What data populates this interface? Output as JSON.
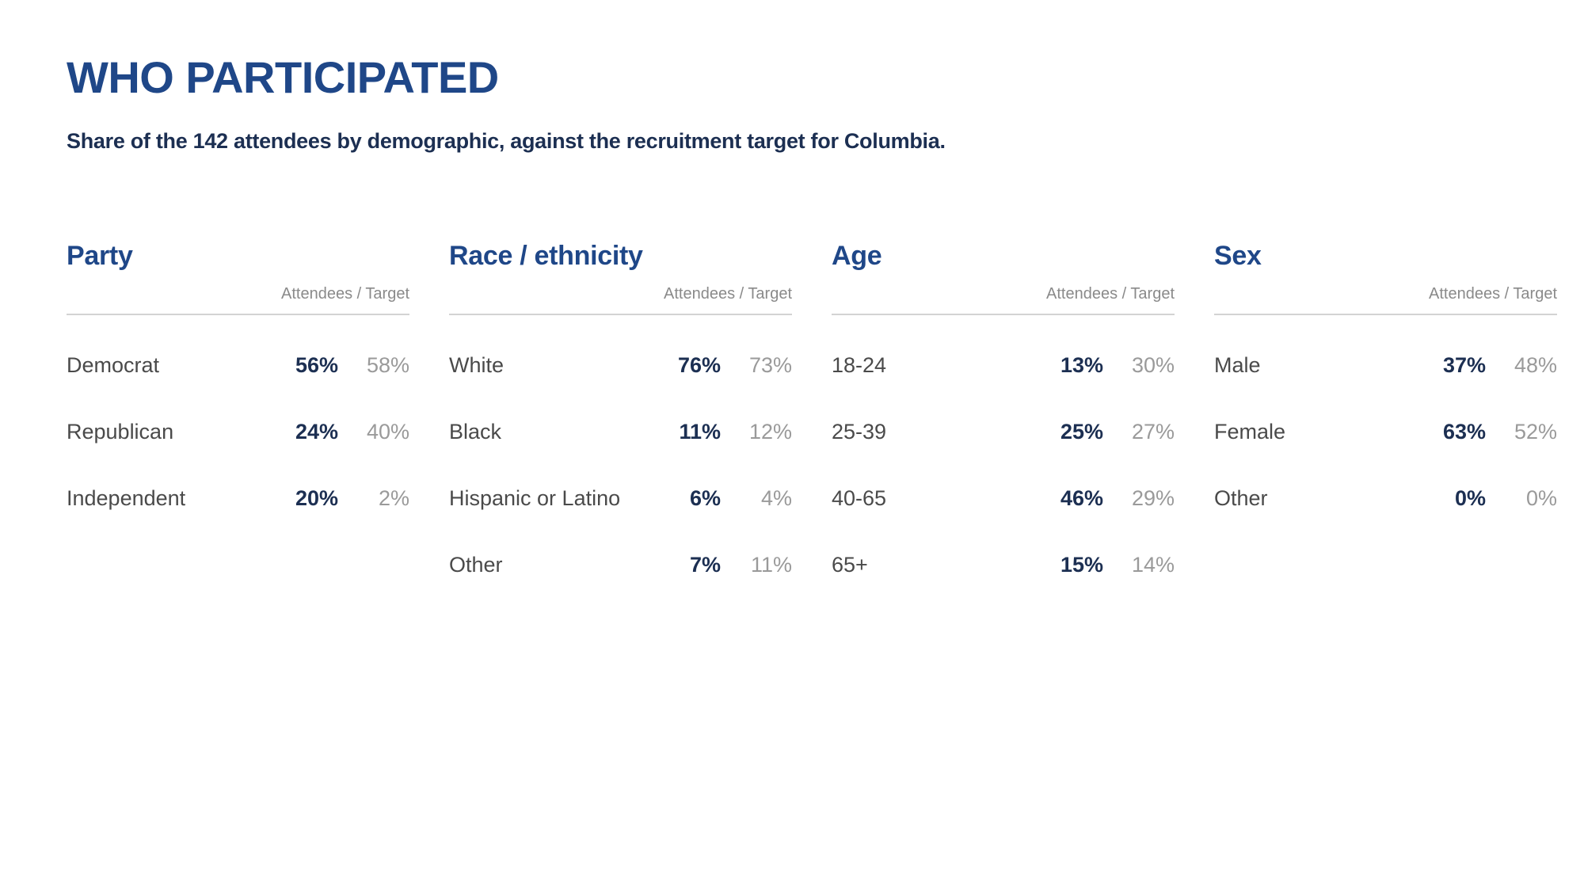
{
  "title": "WHO PARTICIPATED",
  "subtitle": "Share of the 142 attendees by demographic, against the recruitment target for Columbia.",
  "groups": [
    {
      "title": "Party",
      "column_header": "Attendees / Target",
      "rows": [
        {
          "label": "Democrat",
          "attendees": "56%",
          "target": "58%"
        },
        {
          "label": "Republican",
          "attendees": "24%",
          "target": "40%"
        },
        {
          "label": "Independent",
          "attendees": "20%",
          "target": "2%"
        }
      ]
    },
    {
      "title": "Race / ethnicity",
      "column_header": "Attendees / Target",
      "rows": [
        {
          "label": "White",
          "attendees": "76%",
          "target": "73%"
        },
        {
          "label": "Black",
          "attendees": "11%",
          "target": "12%"
        },
        {
          "label": "Hispanic or Latino",
          "attendees": "6%",
          "target": "4%"
        },
        {
          "label": "Other",
          "attendees": "7%",
          "target": "11%"
        }
      ]
    },
    {
      "title": "Age",
      "column_header": "Attendees / Target",
      "rows": [
        {
          "label": "18-24",
          "attendees": "13%",
          "target": "30%"
        },
        {
          "label": "25-39",
          "attendees": "25%",
          "target": "27%"
        },
        {
          "label": "40-65",
          "attendees": "46%",
          "target": "29%"
        },
        {
          "label": "65+",
          "attendees": "15%",
          "target": "14%"
        }
      ]
    },
    {
      "title": "Sex",
      "column_header": "Attendees / Target",
      "rows": [
        {
          "label": "Male",
          "attendees": "37%",
          "target": "48%"
        },
        {
          "label": "Female",
          "attendees": "63%",
          "target": "52%"
        },
        {
          "label": "Other",
          "attendees": "0%",
          "target": "0%"
        }
      ]
    }
  ]
}
